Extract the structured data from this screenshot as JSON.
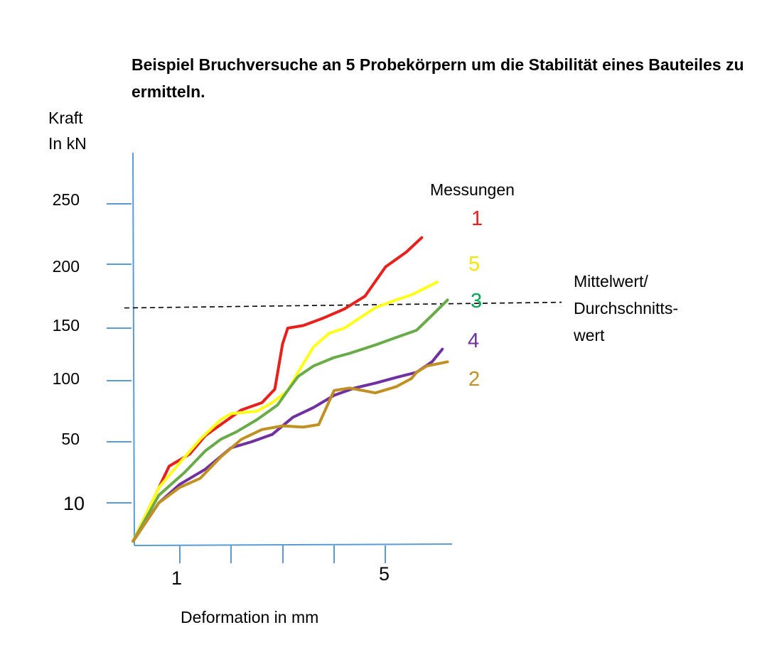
{
  "title": "Beispiel Bruchversuche an 5 Probekörpern um die Stabilität eines Bauteiles zu ermitteln.",
  "ylabel_line1": "Kraft",
  "ylabel_line2": "In kN",
  "xlabel": "Deformation in mm",
  "legend_title": "Messungen",
  "mean_label_line1": "Mittelwert/",
  "mean_label_line2": "Durchschnitts-",
  "mean_label_line3": "wert",
  "chart_data": {
    "type": "line",
    "title": "Beispiel Bruchversuche an 5 Probekörpern um die Stabilität eines Bauteiles zu ermitteln.",
    "xlabel": "Deformation in mm",
    "ylabel": "Kraft In kN",
    "y_ticks": [
      "10",
      "50",
      "100",
      "150",
      "200",
      "250"
    ],
    "x_ticks": [
      "1",
      "",
      "",
      "",
      "5"
    ],
    "grid": false,
    "legend_title": "Messungen",
    "legend_position": "right",
    "legend_order": [
      "1",
      "5",
      "3",
      "4",
      "2"
    ],
    "mean_line": {
      "value": 168,
      "label": "Mittelwert/ Durchschnitts-wert",
      "style": "dashed"
    },
    "series": [
      {
        "name": "1",
        "color": "#e8201c",
        "points": [
          [
            0.1,
            0
          ],
          [
            0.8,
            34
          ],
          [
            1.2,
            42
          ],
          [
            1.5,
            55
          ],
          [
            1.8,
            64
          ],
          [
            2.2,
            76
          ],
          [
            2.6,
            82
          ],
          [
            2.85,
            93
          ],
          [
            3.0,
            135
          ],
          [
            3.1,
            150
          ],
          [
            3.4,
            152
          ],
          [
            3.8,
            158
          ],
          [
            4.2,
            165
          ],
          [
            4.6,
            175
          ],
          [
            5.0,
            198
          ],
          [
            5.4,
            210
          ],
          [
            5.7,
            222
          ]
        ]
      },
      {
        "name": "5",
        "color": "#ffff1a",
        "points": [
          [
            0.1,
            0
          ],
          [
            0.6,
            20
          ],
          [
            1.0,
            36
          ],
          [
            1.4,
            52
          ],
          [
            1.8,
            68
          ],
          [
            2.0,
            73
          ],
          [
            2.5,
            75
          ],
          [
            2.8,
            82
          ],
          [
            3.1,
            92
          ],
          [
            3.3,
            108
          ],
          [
            3.6,
            132
          ],
          [
            3.9,
            145
          ],
          [
            4.2,
            150
          ],
          [
            4.5,
            158
          ],
          [
            4.8,
            166
          ],
          [
            5.2,
            172
          ],
          [
            5.5,
            176
          ],
          [
            6.0,
            186
          ]
        ]
      },
      {
        "name": "3",
        "color": "#6aab49",
        "points": [
          [
            0.1,
            0
          ],
          [
            0.6,
            15
          ],
          [
            1.1,
            30
          ],
          [
            1.5,
            44
          ],
          [
            1.8,
            52
          ],
          [
            2.1,
            58
          ],
          [
            2.5,
            68
          ],
          [
            2.9,
            80
          ],
          [
            3.1,
            92
          ],
          [
            3.3,
            104
          ],
          [
            3.6,
            114
          ],
          [
            4.0,
            122
          ],
          [
            4.3,
            126
          ],
          [
            4.8,
            134
          ],
          [
            5.2,
            141
          ],
          [
            5.6,
            148
          ],
          [
            5.9,
            160
          ],
          [
            6.2,
            172
          ]
        ]
      },
      {
        "name": "4",
        "color": "#7030a0",
        "points": [
          [
            0.1,
            0
          ],
          [
            0.6,
            10
          ],
          [
            1.0,
            22
          ],
          [
            1.5,
            32
          ],
          [
            2.0,
            46
          ],
          [
            2.4,
            50
          ],
          [
            2.8,
            56
          ],
          [
            3.2,
            70
          ],
          [
            3.6,
            78
          ],
          [
            4.0,
            88
          ],
          [
            4.4,
            94
          ],
          [
            4.8,
            98
          ],
          [
            5.2,
            103
          ],
          [
            5.6,
            108
          ],
          [
            5.9,
            118
          ],
          [
            6.1,
            130
          ]
        ]
      },
      {
        "name": "2",
        "color": "#c09022",
        "points": [
          [
            0.1,
            0
          ],
          [
            0.6,
            10
          ],
          [
            1.0,
            20
          ],
          [
            1.4,
            26
          ],
          [
            1.8,
            40
          ],
          [
            2.2,
            52
          ],
          [
            2.6,
            60
          ],
          [
            3.0,
            63
          ],
          [
            3.4,
            62
          ],
          [
            3.7,
            64
          ],
          [
            3.85,
            78
          ],
          [
            4.0,
            92
          ],
          [
            4.3,
            94
          ],
          [
            4.8,
            90
          ],
          [
            5.2,
            95
          ],
          [
            5.5,
            102
          ],
          [
            5.6,
            108
          ],
          [
            5.8,
            114
          ],
          [
            6.2,
            118
          ]
        ]
      }
    ]
  }
}
